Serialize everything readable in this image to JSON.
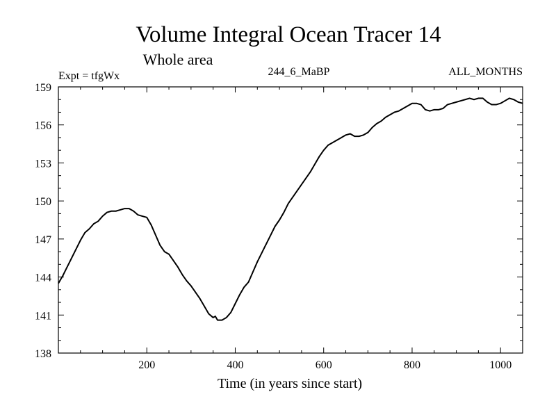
{
  "chart_data": {
    "type": "line",
    "title": "Volume Integral Ocean Tracer 14",
    "subtitle": "Whole area",
    "header_left": "Expt = tfgWx",
    "header_center": "244_6_MaBP",
    "header_right": "ALL_MONTHS",
    "xlabel": "Time (in years since start)",
    "ylabel": "",
    "xlim": [
      0,
      1050
    ],
    "ylim": [
      138,
      159
    ],
    "x_ticks": [
      200,
      400,
      600,
      800,
      1000
    ],
    "y_ticks": [
      138,
      141,
      144,
      147,
      150,
      153,
      156,
      159
    ],
    "grid": false,
    "series": [
      {
        "color": "#000000",
        "x": [
          0,
          10,
          20,
          30,
          40,
          50,
          60,
          70,
          80,
          90,
          100,
          110,
          120,
          130,
          140,
          150,
          160,
          170,
          180,
          190,
          200,
          210,
          220,
          230,
          240,
          250,
          260,
          270,
          280,
          290,
          300,
          310,
          320,
          330,
          340,
          350,
          355,
          360,
          365,
          370,
          380,
          390,
          400,
          410,
          420,
          430,
          440,
          450,
          460,
          470,
          480,
          490,
          500,
          510,
          520,
          530,
          540,
          550,
          560,
          570,
          580,
          590,
          600,
          610,
          620,
          630,
          640,
          650,
          660,
          670,
          680,
          690,
          700,
          710,
          720,
          730,
          740,
          750,
          760,
          770,
          780,
          790,
          800,
          810,
          820,
          830,
          840,
          850,
          860,
          870,
          880,
          890,
          900,
          910,
          920,
          930,
          940,
          950,
          960,
          970,
          980,
          990,
          1000,
          1010,
          1020,
          1030,
          1040,
          1050
        ],
        "y": [
          143.5,
          144.1,
          144.8,
          145.5,
          146.2,
          146.9,
          147.5,
          147.8,
          148.2,
          148.4,
          148.8,
          149.1,
          149.2,
          149.2,
          149.3,
          149.4,
          149.4,
          149.2,
          148.9,
          148.8,
          148.7,
          148.1,
          147.3,
          146.5,
          146.0,
          145.8,
          145.3,
          144.8,
          144.2,
          143.7,
          143.3,
          142.8,
          142.3,
          141.7,
          141.1,
          140.8,
          140.9,
          140.6,
          140.6,
          140.6,
          140.8,
          141.2,
          141.9,
          142.6,
          143.2,
          143.6,
          144.4,
          145.2,
          145.9,
          146.6,
          147.3,
          148.0,
          148.5,
          149.1,
          149.8,
          150.3,
          150.8,
          151.3,
          151.8,
          152.3,
          152.9,
          153.5,
          154.0,
          154.4,
          154.6,
          154.8,
          155.0,
          155.2,
          155.3,
          155.1,
          155.1,
          155.2,
          155.4,
          155.8,
          156.1,
          156.3,
          156.6,
          156.8,
          157.0,
          157.1,
          157.3,
          157.5,
          157.7,
          157.7,
          157.6,
          157.2,
          157.1,
          157.2,
          157.2,
          157.3,
          157.6,
          157.7,
          157.8,
          157.9,
          158.0,
          158.1,
          158.0,
          158.1,
          158.1,
          157.8,
          157.6,
          157.6,
          157.7,
          157.9,
          158.1,
          158.0,
          157.8,
          157.7
        ]
      }
    ]
  }
}
